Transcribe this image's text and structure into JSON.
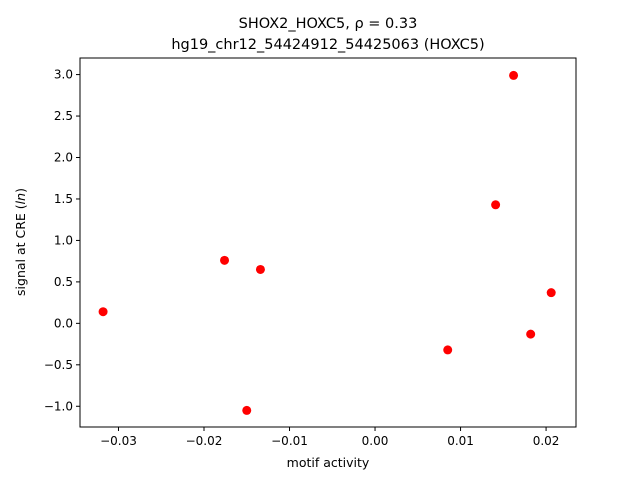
{
  "chart_data": {
    "type": "scatter",
    "title_line1": "SHOX2_HOXC5, ρ = 0.33",
    "title_line2": "hg19_chr12_54424912_54425063 (HOXC5)",
    "xlabel": "motif activity",
    "ylabel": "signal at CRE (ln)",
    "xlim": [
      -0.0345,
      0.0235
    ],
    "ylim": [
      -1.25,
      3.2
    ],
    "xticks": [
      -0.03,
      -0.02,
      -0.01,
      0.0,
      0.01,
      0.02
    ],
    "xtick_labels": [
      "−0.03",
      "−0.02",
      "−0.01",
      "0.00",
      "0.01",
      "0.02"
    ],
    "yticks": [
      -1.0,
      -0.5,
      0.0,
      0.5,
      1.0,
      1.5,
      2.0,
      2.5,
      3.0
    ],
    "ytick_labels": [
      "−1.0",
      "−0.5",
      "0.0",
      "0.5",
      "1.0",
      "1.5",
      "2.0",
      "2.5",
      "3.0"
    ],
    "marker_color": "#ff0000",
    "grid": false,
    "points": [
      {
        "x": -0.0318,
        "y": 0.14
      },
      {
        "x": -0.0176,
        "y": 0.76
      },
      {
        "x": -0.0134,
        "y": 0.65
      },
      {
        "x": -0.015,
        "y": -1.05
      },
      {
        "x": 0.0085,
        "y": -0.32
      },
      {
        "x": 0.0141,
        "y": 1.43
      },
      {
        "x": 0.0162,
        "y": 2.99
      },
      {
        "x": 0.0182,
        "y": -0.13
      },
      {
        "x": 0.0206,
        "y": 0.37
      }
    ]
  }
}
